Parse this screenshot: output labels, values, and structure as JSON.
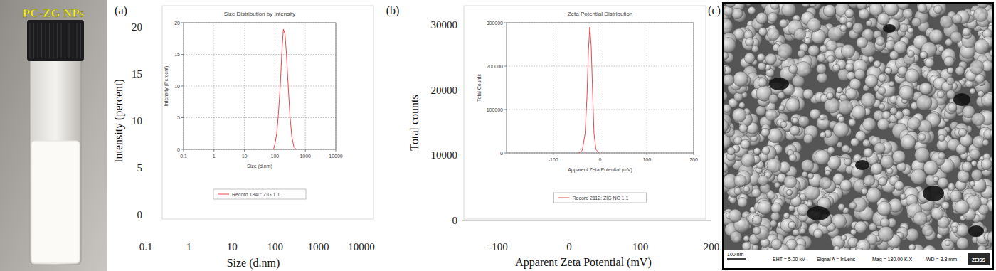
{
  "photo": {
    "label": "PC-ZG NPs"
  },
  "chart_data": [
    {
      "type": "line",
      "panel_label": "(a)",
      "x_label": "Size (d.nm)",
      "y_label": "Intensity (percent)",
      "log": "x",
      "xlim": [
        0.1,
        10000
      ],
      "xticks": [
        0.1,
        1,
        10,
        100,
        1000,
        10000
      ],
      "ylim": [
        0,
        20
      ],
      "yticks": [
        0,
        5,
        10,
        15,
        20
      ],
      "inset": {
        "type": "line",
        "title": "Size Distribution by Intensity",
        "x_label": "Size (d.nm)",
        "y_label": "Intensity (Percent)",
        "log": "x",
        "grid": true,
        "xlim": [
          0.1,
          10000
        ],
        "xticks": [
          0.1,
          1,
          10,
          100,
          1000,
          10000
        ],
        "ylim": [
          0,
          20
        ],
        "yticks": [
          0,
          5,
          10,
          15,
          20
        ],
        "x": [
          90,
          100,
          115,
          130,
          150,
          170,
          190,
          215,
          240,
          270,
          310,
          360,
          420,
          500
        ],
        "series": [
          {
            "name": "Record 1840: ZIG 1 1",
            "color": "#e8474f",
            "values": [
              0,
              0.8,
              2.5,
              5.5,
              10,
              15.5,
              19,
              18.2,
              15,
              10.5,
              5.5,
              2,
              0.4,
              0
            ]
          }
        ]
      }
    },
    {
      "type": "line",
      "panel_label": "(b)",
      "x_label": "Apparent Zeta Potential (mV)",
      "y_label": "Total counts",
      "xlim": [
        -150,
        200
      ],
      "xticks": [
        -100,
        0,
        100,
        200
      ],
      "ylim": [
        0,
        30000
      ],
      "yticks": [
        0,
        10000,
        20000,
        30000
      ],
      "inset": {
        "type": "line",
        "title": "Zeta Potential Distribution",
        "x_label": "Apparent Zeta Potential (mV)",
        "y_label": "Total Counts",
        "grid": true,
        "xlim": [
          -200,
          200
        ],
        "xticks": [
          -100,
          0,
          100,
          200
        ],
        "ylim": [
          0,
          300000
        ],
        "yticks": [
          0,
          100000,
          200000,
          300000
        ],
        "x": [
          -45,
          -38,
          -32,
          -28,
          -25,
          -22,
          -19,
          -16,
          -13,
          -9,
          -2
        ],
        "series": [
          {
            "name": "Record 2112: ZIG NC 1 1",
            "color": "#e8474f",
            "values": [
              0,
              6000,
              45000,
              130000,
              235000,
              290000,
              245000,
              140000,
              45000,
              8000,
              0
            ]
          }
        ]
      }
    }
  ],
  "sem_image": {
    "panel_label": "(c)",
    "scale_bar": "100 nm",
    "eht": "EHT = 5.00 kV",
    "signal": "Signal A = InLens",
    "mag": "Mag = 180.00 K X",
    "wd": "WD = 3.8 mm",
    "logo": "ZEISS"
  }
}
